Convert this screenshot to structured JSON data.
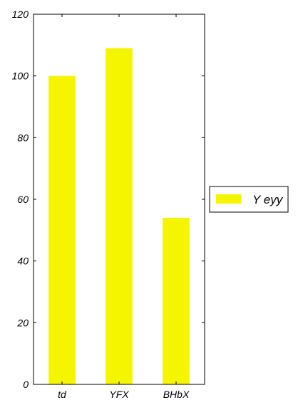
{
  "chart_data": {
    "type": "bar",
    "categories": [
      "td",
      "YFX",
      "BHbX"
    ],
    "series": [
      {
        "name": "Y eyy",
        "values": [
          100,
          109,
          54
        ]
      }
    ],
    "title": "",
    "xlabel": "",
    "ylabel": "",
    "ylim": [
      0,
      120
    ],
    "yticks": [
      0,
      20,
      40,
      60,
      80,
      100,
      120
    ],
    "grid": false,
    "legend_position": "right",
    "colors": {
      "bar": "#f5f500",
      "axis": "#000000",
      "background": "#ffffff"
    }
  }
}
